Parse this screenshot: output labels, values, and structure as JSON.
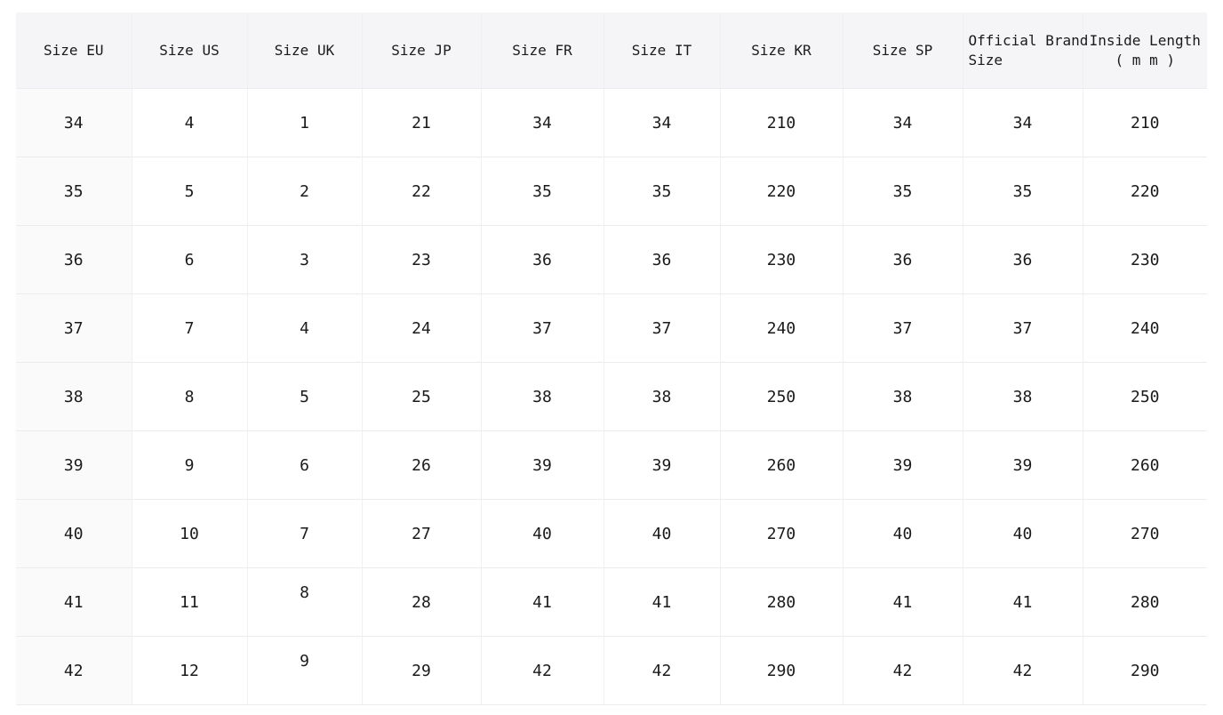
{
  "chart_data": {
    "type": "table",
    "columns": [
      {
        "key": "size_eu",
        "label": "Size EU",
        "lines": [
          "Size EU"
        ]
      },
      {
        "key": "size_us",
        "label": "Size US",
        "lines": [
          "Size US"
        ]
      },
      {
        "key": "size_uk",
        "label": "Size UK",
        "lines": [
          "Size UK"
        ]
      },
      {
        "key": "size_jp",
        "label": "Size JP",
        "lines": [
          "Size JP"
        ]
      },
      {
        "key": "size_fr",
        "label": "Size FR",
        "lines": [
          "Size FR"
        ]
      },
      {
        "key": "size_it",
        "label": "Size IT",
        "lines": [
          "Size IT"
        ]
      },
      {
        "key": "size_kr",
        "label": "Size KR",
        "lines": [
          "Size KR"
        ]
      },
      {
        "key": "size_sp",
        "label": "Size SP",
        "lines": [
          "Size SP"
        ]
      },
      {
        "key": "official_brand_size",
        "label": "Official Brand Size",
        "lines": [
          "Official Brand",
          "Size"
        ]
      },
      {
        "key": "inside_length_mm",
        "label": "Inside Length ( m m )",
        "lines": [
          "Inside Length",
          "( m m )"
        ]
      }
    ],
    "rows": [
      [
        "34",
        "4",
        "1",
        "21",
        "34",
        "34",
        "210",
        "34",
        "34",
        "210"
      ],
      [
        "35",
        "5",
        "2",
        "22",
        "35",
        "35",
        "220",
        "35",
        "35",
        "220"
      ],
      [
        "36",
        "6",
        "3",
        "23",
        "36",
        "36",
        "230",
        "36",
        "36",
        "230"
      ],
      [
        "37",
        "7",
        "4",
        "24",
        "37",
        "37",
        "240",
        "37",
        "37",
        "240"
      ],
      [
        "38",
        "8",
        "5",
        "25",
        "38",
        "38",
        "250",
        "38",
        "38",
        "250"
      ],
      [
        "39",
        "9",
        "6",
        "26",
        "39",
        "39",
        "260",
        "39",
        "39",
        "260"
      ],
      [
        "40",
        "10",
        "7",
        "27",
        "40",
        "40",
        "270",
        "40",
        "40",
        "270"
      ],
      [
        "41",
        "11",
        "8",
        "28",
        "41",
        "41",
        "280",
        "41",
        "41",
        "280"
      ],
      [
        "42",
        "12",
        "9",
        "29",
        "42",
        "42",
        "290",
        "42",
        "42",
        "290"
      ]
    ]
  },
  "colors": {
    "page_bg": "#ffffff",
    "header_bg": "#f5f5f7",
    "first_col_bg": "#fafafb",
    "cell_bg": "#ffffff",
    "border_h": "#ececee",
    "border_v": "#f0f0f2",
    "text": "#1a1a1c"
  }
}
